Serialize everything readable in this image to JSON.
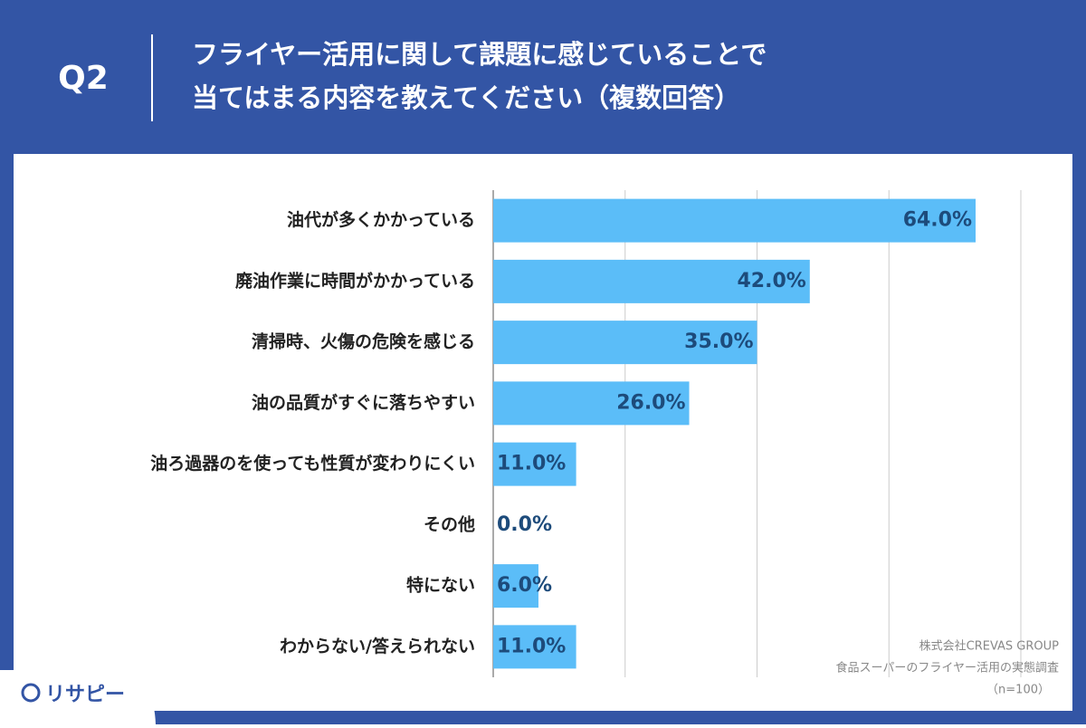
{
  "header": {
    "label": "Q2",
    "title": [
      "フライヤー活用に関して課題に感じていることで",
      "当てはまる内容を教えてください（複数回答）"
    ]
  },
  "chart_data": {
    "type": "hbar",
    "categories": [
      "油代が多くかかっている",
      "廃油作業に時間がかかっている",
      "清掃時、火傷の危険を感じる",
      "油の品質がすぐに落ちやすい",
      "油ろ過器のを使っても性質が変わりにくい",
      "その他",
      "特にない",
      "わからない/答えられない"
    ],
    "values": [
      64.0,
      42.0,
      35.0,
      26.0,
      11.0,
      0.0,
      6.0,
      11.0
    ],
    "value_labels": [
      "64.0%",
      "42.0%",
      "35.0%",
      "26.0%",
      "11.0%",
      "0.0%",
      "6.0%",
      "11.0%"
    ],
    "color": "#5bbdf8",
    "xlim": [
      0,
      70
    ],
    "xticks": [
      0,
      17.5,
      35,
      52.5,
      70
    ],
    "grid": true
  },
  "source": [
    "株式会社CREVAS GROUP",
    "食品スーパーのフライヤー活用の実態調査",
    "（n=100）"
  ],
  "logo": "リサピー"
}
